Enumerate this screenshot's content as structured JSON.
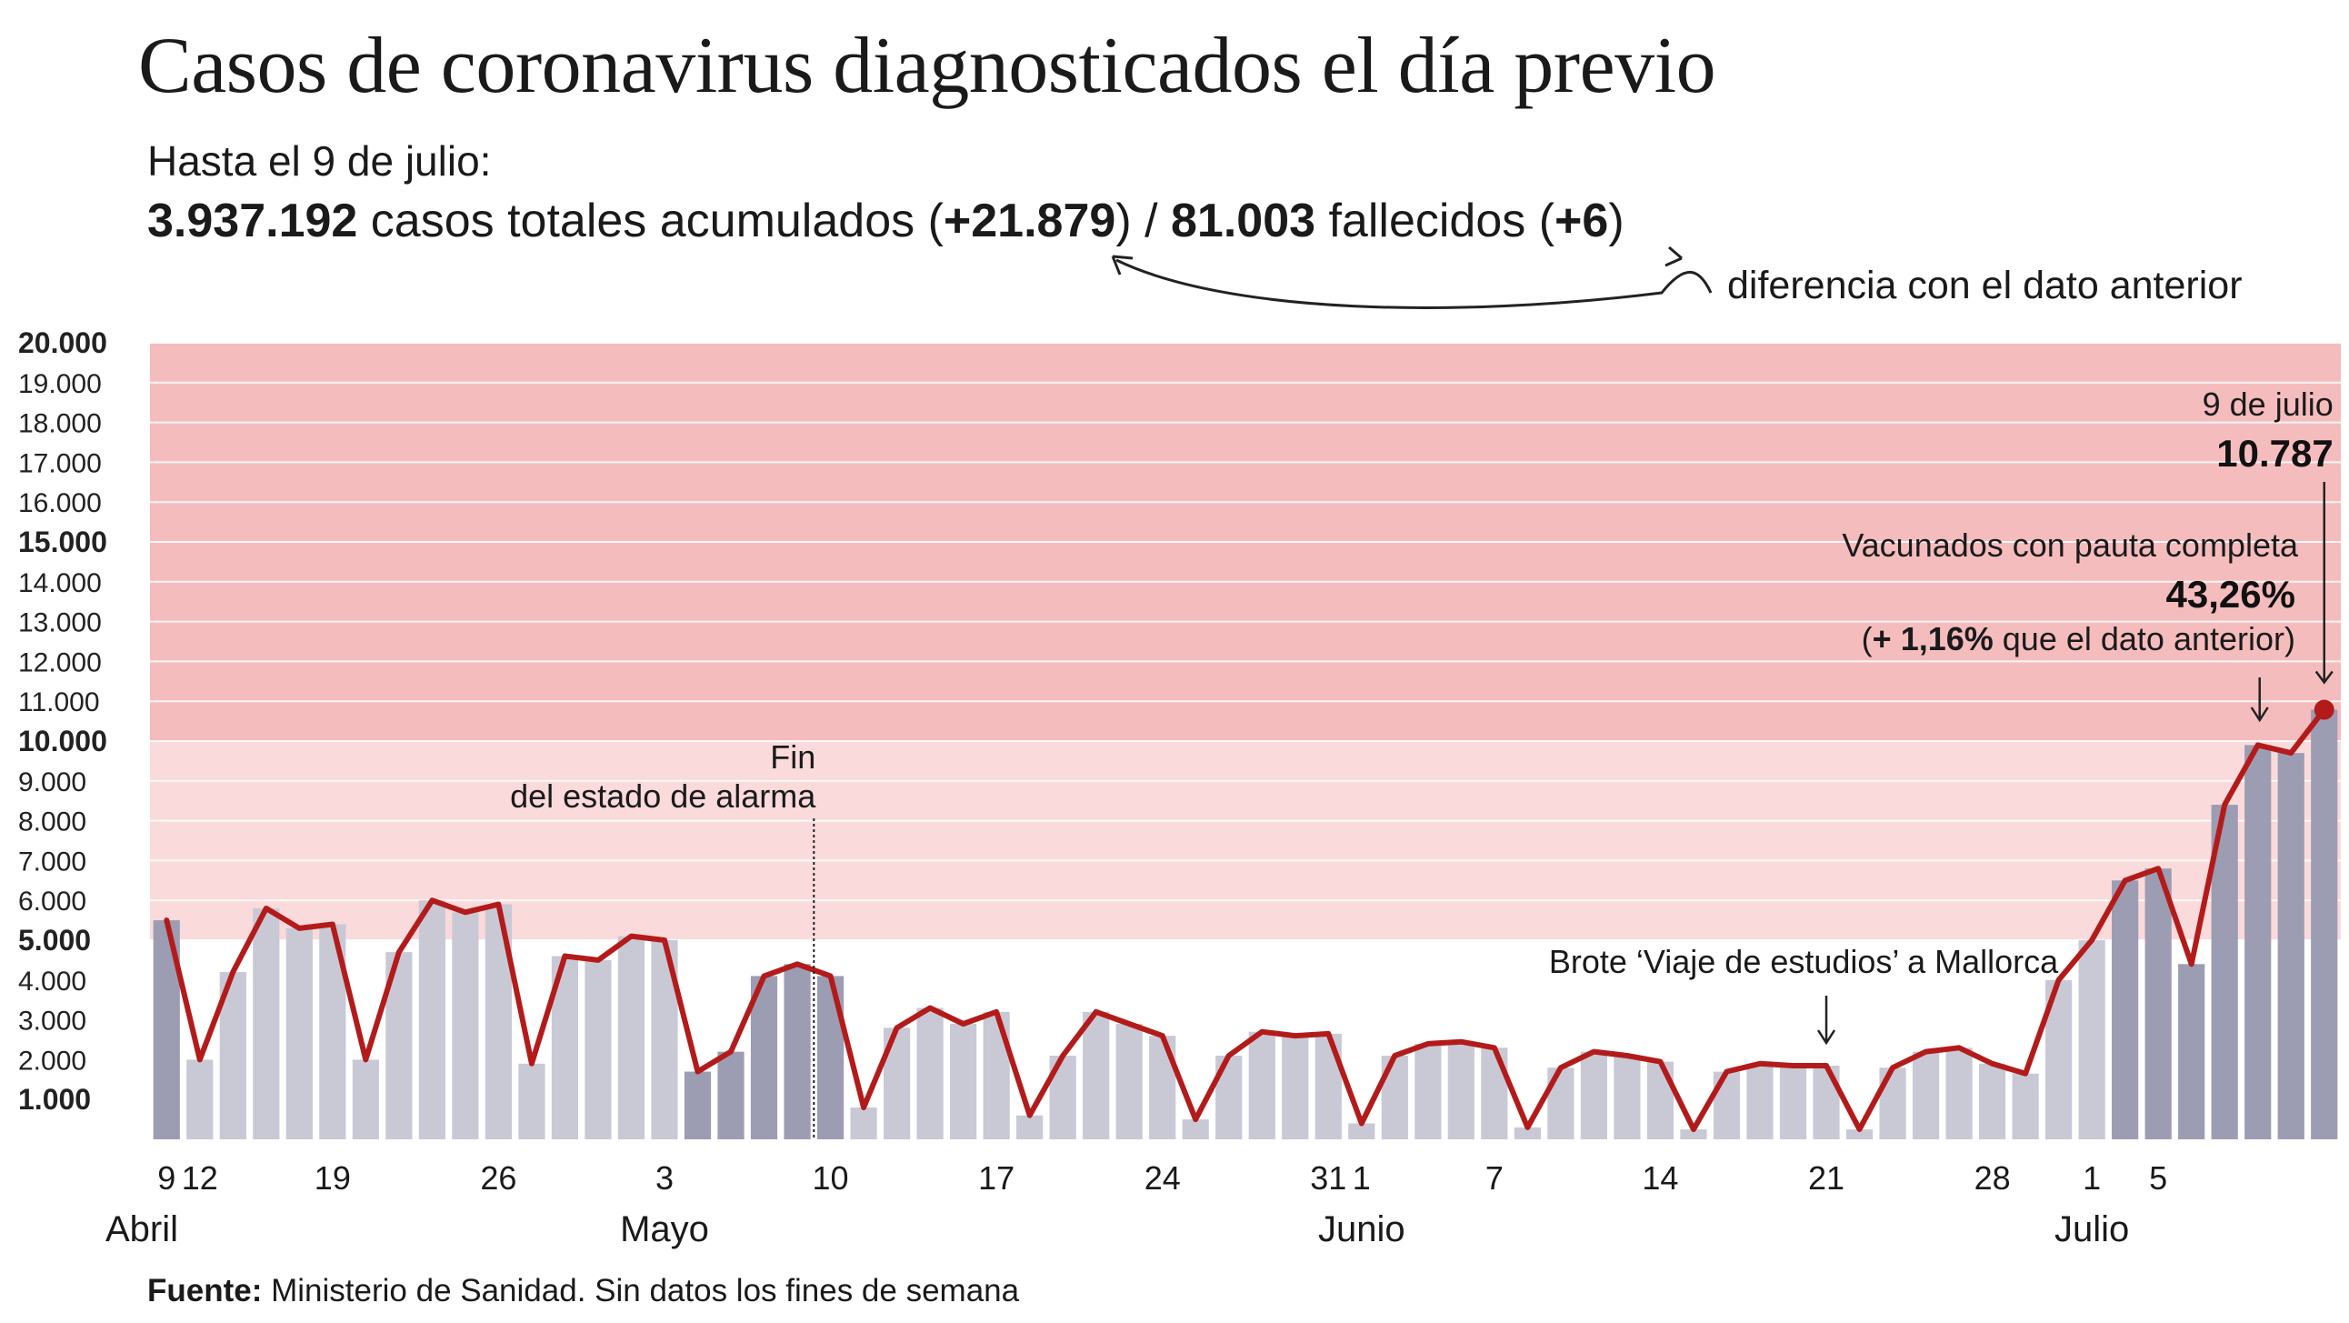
{
  "header": {
    "title": "Casos de coronavirus diagnosticados el día previo",
    "subtitle_line1": "Hasta el 9 de julio:",
    "total_cases": "3.937.192",
    "total_cases_label": " casos totales acumulados (",
    "cases_diff": "+21.879",
    "sep": ") / ",
    "deaths": "81.003",
    "deaths_label": " fallecidos (",
    "deaths_diff": "+6",
    "close": ")",
    "diff_note": "diferencia con el dato anterior"
  },
  "source": {
    "label": "Fuente:",
    "text": " Ministerio de Sanidad. Sin datos los fines de semana"
  },
  "colors": {
    "band_high": "#f5bcbe",
    "band_mid": "#fadadb",
    "bar_weekly": "#9c9db3",
    "bar_default": "#c9c9d5",
    "line": "#b31b1b"
  },
  "annotations": {
    "alarm_line1": "Fin",
    "alarm_line2": "del estado de alarma",
    "brote": "Brote ‘Viaje de estudios’ a Mallorca",
    "last_date": "9 de julio",
    "last_value": "10.787",
    "vacc_label": "Vacunados con pauta completa",
    "vacc_value": "43,26%",
    "vacc_open": "(",
    "vacc_diff": "+ 1,16%",
    "vacc_rest": " que el dato anterior)"
  },
  "chart_data": {
    "type": "bar",
    "xlabel": "",
    "ylabel": "",
    "ylim": [
      0,
      20000
    ],
    "grid": true,
    "y_ticks": [
      {
        "value": 20000,
        "label": "20.000",
        "major": true
      },
      {
        "value": 19000,
        "label": "19.000",
        "major": false
      },
      {
        "value": 18000,
        "label": "18.000",
        "major": false
      },
      {
        "value": 17000,
        "label": "17.000",
        "major": false
      },
      {
        "value": 16000,
        "label": "16.000",
        "major": false
      },
      {
        "value": 15000,
        "label": "15.000",
        "major": true
      },
      {
        "value": 14000,
        "label": "14.000",
        "major": false
      },
      {
        "value": 13000,
        "label": "13.000",
        "major": false
      },
      {
        "value": 12000,
        "label": "12.000",
        "major": false
      },
      {
        "value": 11000,
        "label": "11.000",
        "major": false
      },
      {
        "value": 10000,
        "label": "10.000",
        "major": true
      },
      {
        "value": 9000,
        "label": "9.000",
        "major": false
      },
      {
        "value": 8000,
        "label": "8.000",
        "major": false
      },
      {
        "value": 7000,
        "label": "7.000",
        "major": false
      },
      {
        "value": 6000,
        "label": "6.000",
        "major": false
      },
      {
        "value": 5000,
        "label": "5.000",
        "major": true
      },
      {
        "value": 4000,
        "label": "4.000",
        "major": false
      },
      {
        "value": 3000,
        "label": "3.000",
        "major": false
      },
      {
        "value": 2000,
        "label": "2.000",
        "major": false
      },
      {
        "value": 1000,
        "label": "1.000",
        "major": true
      }
    ],
    "x_ticks": [
      {
        "index": 0,
        "label": "9"
      },
      {
        "index": 1,
        "label": "12"
      },
      {
        "index": 5,
        "label": "19"
      },
      {
        "index": 10,
        "label": "26"
      },
      {
        "index": 15,
        "label": "3"
      },
      {
        "index": 20,
        "label": "10"
      },
      {
        "index": 25,
        "label": "17"
      },
      {
        "index": 30,
        "label": "24"
      },
      {
        "index": 35,
        "label": "31"
      },
      {
        "index": 36,
        "label": "1"
      },
      {
        "index": 40,
        "label": "7"
      },
      {
        "index": 45,
        "label": "14"
      },
      {
        "index": 50,
        "label": "21"
      },
      {
        "index": 55,
        "label": "28"
      },
      {
        "index": 58,
        "label": "1"
      },
      {
        "index": 60,
        "label": "5"
      }
    ],
    "months": [
      {
        "index": 0,
        "label": "Abril"
      },
      {
        "index": 15,
        "label": "Mayo"
      },
      {
        "index": 36,
        "label": "Junio"
      },
      {
        "index": 58,
        "label": "Julio"
      }
    ],
    "bands": [
      {
        "from": 10000,
        "to": 20000,
        "color": "#f5bcbe"
      },
      {
        "from": 5000,
        "to": 10000,
        "color": "#fadadb"
      }
    ],
    "alarm_index": 19.5,
    "brote_index": 50,
    "vacc_index": 63,
    "series": [
      {
        "values": [
          5500,
          2000,
          4200,
          5800,
          5300,
          5400,
          2000,
          4700,
          6000,
          5700,
          5900,
          1900,
          4600,
          4500,
          5100,
          5000,
          1700,
          2200,
          4100,
          4400,
          4100,
          800,
          2800,
          3300,
          2900,
          3200,
          600,
          2100,
          3200,
          2900,
          2600,
          500,
          2100,
          2700,
          2600,
          2650,
          400,
          2100,
          2400,
          2450,
          2300,
          300,
          1800,
          2200,
          2100,
          1950,
          250,
          1700,
          1900,
          1850,
          1850,
          250,
          1800,
          2200,
          2300,
          1900,
          1650,
          4000,
          5000,
          6500,
          6800,
          4400,
          8400,
          9900,
          9700,
          10787
        ],
        "bar_weekly": [
          true,
          false,
          false,
          false,
          false,
          false,
          false,
          false,
          false,
          false,
          false,
          false,
          false,
          false,
          false,
          false,
          true,
          true,
          true,
          true,
          true,
          false,
          false,
          false,
          false,
          false,
          false,
          false,
          false,
          false,
          false,
          false,
          false,
          false,
          false,
          false,
          false,
          false,
          false,
          false,
          false,
          false,
          false,
          false,
          false,
          false,
          false,
          false,
          false,
          false,
          false,
          false,
          false,
          false,
          false,
          false,
          false,
          false,
          false,
          true,
          true,
          true,
          true,
          true,
          true,
          true
        ]
      }
    ]
  }
}
